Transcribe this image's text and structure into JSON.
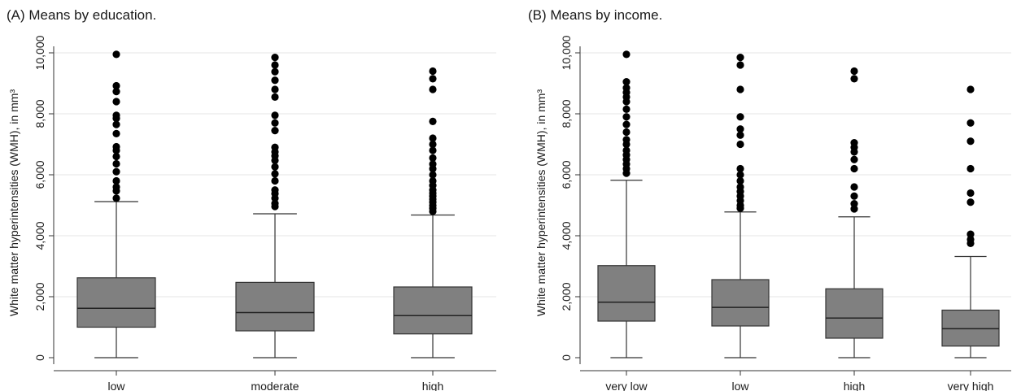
{
  "chart_data": [
    {
      "type": "box",
      "title": "(A) Means by education.",
      "ylabel": "White matter hyperintensities (WMH), in mm³",
      "xlabel": "",
      "ylim": [
        0,
        10000
      ],
      "yticks": [
        0,
        2000,
        4000,
        6000,
        8000,
        10000
      ],
      "ytick_labels": [
        "0",
        "2,000",
        "4,000",
        "6,000",
        "8,000",
        "10,000"
      ],
      "grid": true,
      "categories": [
        "low",
        "moderate",
        "high"
      ],
      "boxes": [
        {
          "category": "low",
          "whisker_low": 0,
          "q1": 1000,
          "median": 1620,
          "q3": 2620,
          "whisker_high": 5120,
          "outliers": [
            5230,
            5470,
            5600,
            5800,
            6100,
            6360,
            6600,
            6800,
            6920,
            7350,
            7650,
            7850,
            7950,
            8400,
            8730,
            8920,
            9950
          ]
        },
        {
          "category": "moderate",
          "whisker_low": 0,
          "q1": 880,
          "median": 1480,
          "q3": 2470,
          "whisker_high": 4720,
          "outliers": [
            4960,
            5060,
            5230,
            5380,
            5500,
            5800,
            6030,
            6260,
            6470,
            6620,
            6750,
            6900,
            7450,
            7700,
            7950,
            8550,
            8800,
            9100,
            9380,
            9600,
            9850
          ]
        },
        {
          "category": "high",
          "whisker_low": 0,
          "q1": 780,
          "median": 1380,
          "q3": 2320,
          "whisker_high": 4680,
          "outliers": [
            4800,
            4900,
            5000,
            5100,
            5200,
            5300,
            5400,
            5500,
            5650,
            5800,
            6000,
            6200,
            6350,
            6550,
            6800,
            7000,
            7200,
            7750,
            8800,
            9150,
            9400
          ]
        }
      ]
    },
    {
      "type": "box",
      "title": "(B) Means by income.",
      "ylabel": "White matter hyperintensities (WMH), in mm³",
      "xlabel": "",
      "ylim": [
        0,
        10000
      ],
      "yticks": [
        0,
        2000,
        4000,
        6000,
        8000,
        10000
      ],
      "ytick_labels": [
        "0",
        "2,000",
        "4,000",
        "6,000",
        "8,000",
        "10,000"
      ],
      "grid": true,
      "categories": [
        "very low",
        "low",
        "high",
        "very high"
      ],
      "boxes": [
        {
          "category": "very low",
          "whisker_low": 0,
          "q1": 1200,
          "median": 1820,
          "q3": 3020,
          "whisker_high": 5820,
          "outliers": [
            6050,
            6200,
            6350,
            6500,
            6650,
            6800,
            7000,
            7150,
            7400,
            7650,
            7900,
            8150,
            8400,
            8550,
            8700,
            8850,
            9050,
            9950
          ]
        },
        {
          "category": "low",
          "whisker_low": 0,
          "q1": 1040,
          "median": 1650,
          "q3": 2560,
          "whisker_high": 4780,
          "outliers": [
            4900,
            5000,
            5150,
            5300,
            5450,
            5600,
            5800,
            6000,
            6200,
            7000,
            7300,
            7500,
            7900,
            8800,
            9600,
            9850
          ]
        },
        {
          "category": "high",
          "whisker_low": 0,
          "q1": 640,
          "median": 1300,
          "q3": 2260,
          "whisker_high": 4620,
          "outliers": [
            4880,
            5050,
            5300,
            5600,
            6200,
            6500,
            6750,
            6900,
            7050,
            9150,
            9400
          ]
        },
        {
          "category": "very high",
          "whisker_low": 0,
          "q1": 380,
          "median": 950,
          "q3": 1560,
          "whisker_high": 3320,
          "outliers": [
            3750,
            3880,
            4050,
            5100,
            5400,
            6200,
            7100,
            7700,
            8800
          ]
        }
      ]
    }
  ]
}
